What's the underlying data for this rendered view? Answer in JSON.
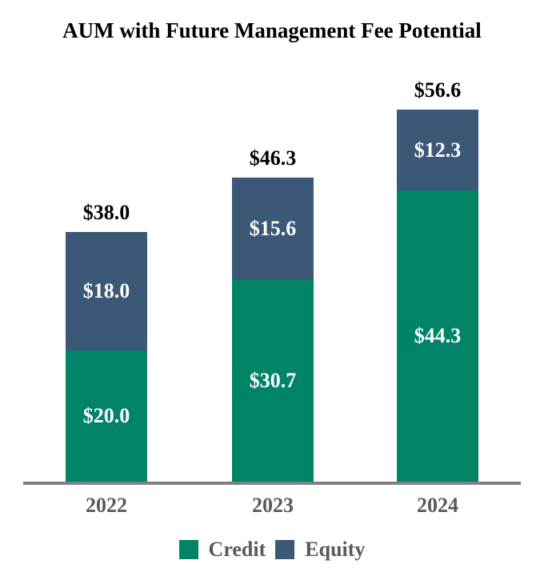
{
  "chart_data": {
    "type": "bar",
    "stacked": true,
    "title": "AUM with Future Management Fee Potential",
    "categories": [
      "2022",
      "2023",
      "2024"
    ],
    "series": [
      {
        "name": "Credit",
        "color": "#008467",
        "values": [
          20.0,
          30.7,
          44.3
        ],
        "labels": [
          "$20.0",
          "$30.7",
          "$44.3"
        ]
      },
      {
        "name": "Equity",
        "color": "#3B5876",
        "values": [
          18.0,
          15.6,
          12.3
        ],
        "labels": [
          "$18.0",
          "$15.6",
          "$12.3"
        ]
      }
    ],
    "totals": [
      38.0,
      46.3,
      56.6
    ],
    "total_labels": [
      "$38.0",
      "$46.3",
      "$56.6"
    ],
    "legend_position": "bottom",
    "grid": false,
    "y_axis_visible": false
  },
  "colors": {
    "credit": "#008467",
    "equity": "#3B5876",
    "axis_line": "#808080",
    "axis_text": "#595959",
    "title_text": "#000000",
    "segment_label_text": "#FFFFFF",
    "background": "#FFFFFF"
  }
}
